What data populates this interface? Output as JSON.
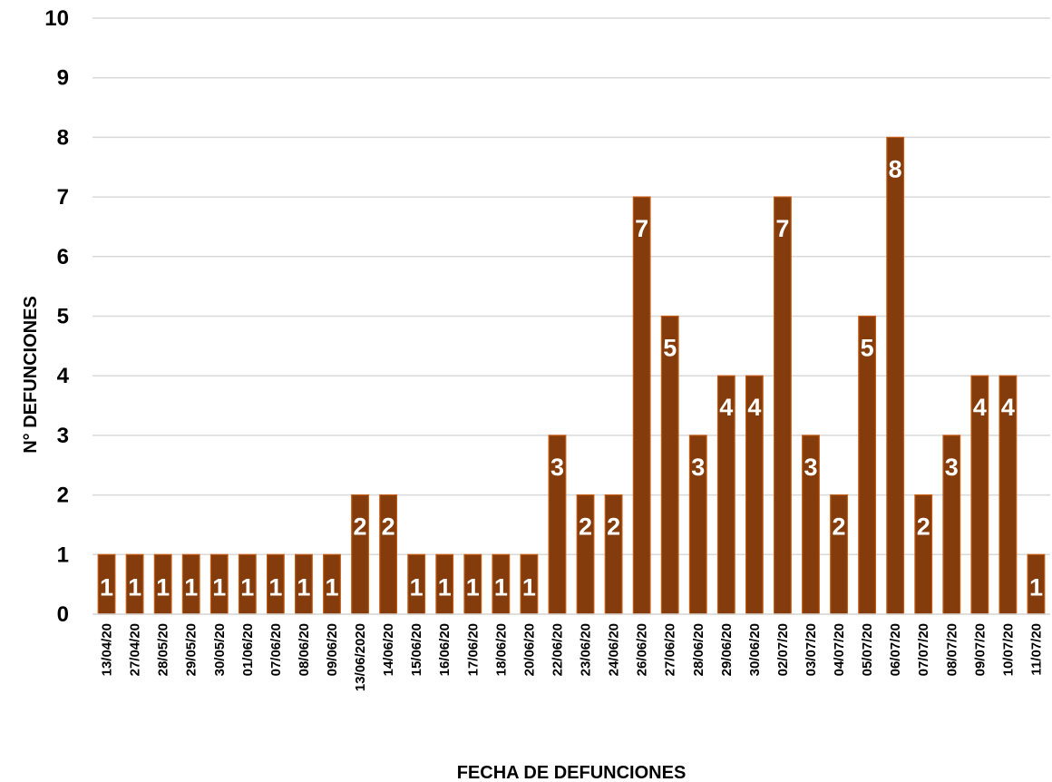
{
  "chart_data": {
    "type": "bar",
    "title": "",
    "xlabel": "FECHA DE DEFUNCIONES",
    "ylabel": "N° DEFUNCIONES",
    "ylim": [
      0,
      10
    ],
    "yticks": [
      0,
      1,
      2,
      3,
      4,
      5,
      6,
      7,
      8,
      9,
      10
    ],
    "grid": true,
    "legend": "none",
    "categories": [
      "13/04/20",
      "27/04/20",
      "28/05/20",
      "29/05/20",
      "30/05/20",
      "01/06/20",
      "07/06/20",
      "08/06/20",
      "09/06/20",
      "13/06/2020",
      "14/06/20",
      "15/06/20",
      "16/06/20",
      "17/06/20",
      "18/06/20",
      "20/06/20",
      "22/06/20",
      "23/06/20",
      "24/06/20",
      "26/06/20",
      "27/06/20",
      "28/06/20",
      "29/06/20",
      "30/06/20",
      "02/07/20",
      "03/07/20",
      "04/07/20",
      "05/07/20",
      "06/07/20",
      "07/07/20",
      "08/07/20",
      "09/07/20",
      "10/07/20",
      "11/07/20"
    ],
    "values": [
      1,
      1,
      1,
      1,
      1,
      1,
      1,
      1,
      1,
      2,
      2,
      1,
      1,
      1,
      1,
      1,
      3,
      2,
      2,
      7,
      5,
      3,
      4,
      4,
      7,
      3,
      2,
      5,
      8,
      2,
      3,
      4,
      4,
      1
    ],
    "colors": {
      "bar_fill": "#843C0C",
      "bar_stroke": "#C55A11",
      "data_label": "#ffffff",
      "grid": "#D9D9D9"
    }
  }
}
